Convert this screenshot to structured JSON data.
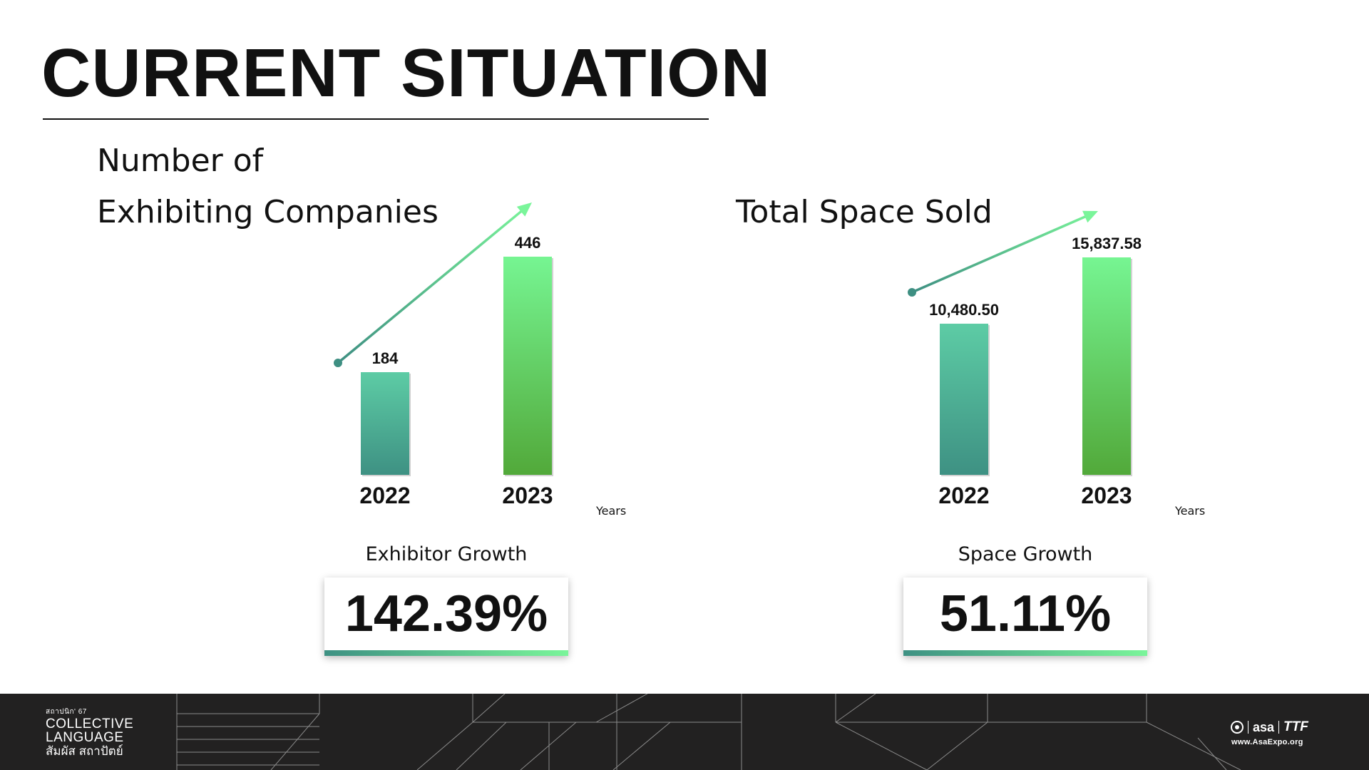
{
  "slide": {
    "title": "CURRENT SITUATION"
  },
  "chart_data": [
    {
      "type": "bar",
      "title_lines": [
        "Number of",
        "Exhibiting Companies"
      ],
      "categories": [
        "2022",
        "2023"
      ],
      "values": [
        184,
        446
      ],
      "value_labels": [
        "184",
        "446"
      ],
      "xlabel": "Years",
      "ylabel": "",
      "ylim": [
        0,
        480
      ],
      "grid": false,
      "trend_arrow": true,
      "growth_label": "Exhibitor Growth",
      "growth_value": "142.39%"
    },
    {
      "type": "bar",
      "title_lines": [
        "Total Space Sold"
      ],
      "categories": [
        "2022",
        "2023"
      ],
      "values": [
        10480.5,
        15837.58
      ],
      "value_labels": [
        "10,480.50",
        "15,837.58"
      ],
      "xlabel": "Years",
      "ylabel": "",
      "ylim": [
        0,
        17000
      ],
      "grid": false,
      "trend_arrow": true,
      "growth_label": "Space Growth",
      "growth_value": "51.11%"
    }
  ],
  "footer": {
    "event_small": "สถาปนิก' 67",
    "event_line1": "COLLECTIVE",
    "event_line2": "LANGUAGE",
    "event_thai": "สัมผัส สถาปัตย์",
    "partner1": "asa",
    "partner2": "TTF",
    "website": "www.AsaExpo.org"
  },
  "colors": {
    "bar_dark": "#3e9183",
    "bar_light": "#5dcca5",
    "bar2_top": "#76f592",
    "bar2_bottom": "#52a93a",
    "axis": "#3f9884",
    "footer_bg": "#222121"
  }
}
